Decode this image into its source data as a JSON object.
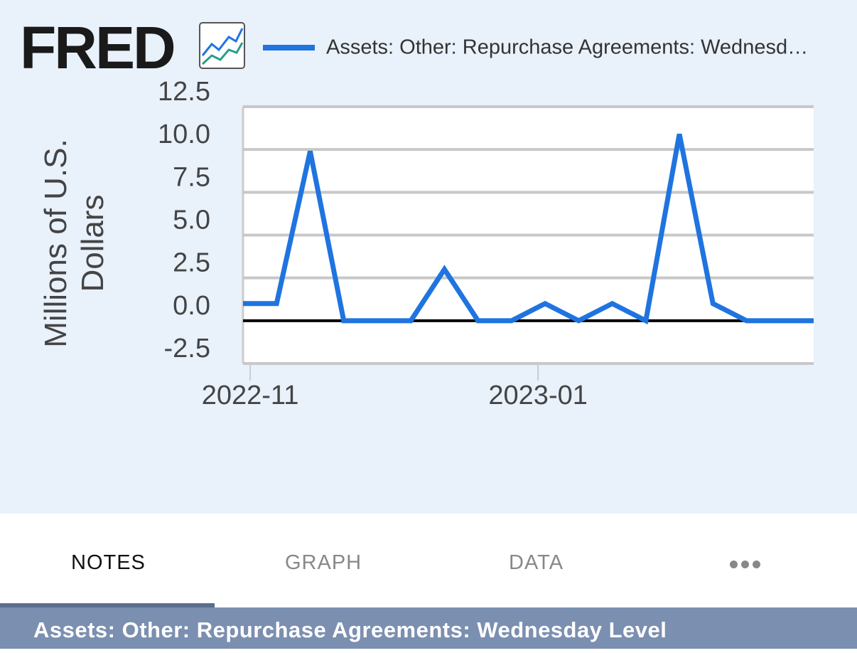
{
  "header": {
    "logo": "FRED"
  },
  "chart_data": {
    "type": "line",
    "legend_label": "Assets: Other: Repurchase Agreements: Wednesd…",
    "ylabel": "Millions of U.S. Dollars",
    "categories": [
      null,
      null,
      null,
      null,
      null,
      null,
      null,
      null,
      null,
      null,
      null,
      null,
      null,
      null,
      null,
      null,
      null,
      null
    ],
    "series": [
      {
        "name": "Assets: Other: Repurchase Agreements: Wednesd…",
        "color": "#1f74e0",
        "values": [
          1.0,
          1.0,
          9.9,
          0,
          0,
          0,
          3.0,
          0,
          0,
          1.0,
          0,
          1.0,
          0,
          10.9,
          1.0,
          0,
          0,
          0
        ]
      }
    ],
    "xticks": [
      "2022-11",
      "2023-01"
    ],
    "ylim": [
      -2.5,
      12.5
    ],
    "yticks": [
      -2.5,
      {
        "value": 0,
        "label": "0.0"
      },
      2.5,
      {
        "value": 5,
        "label": "5.0"
      },
      7.5,
      {
        "value": 10,
        "label": "10.0"
      },
      12.5
    ],
    "grid": true
  },
  "tabs": [
    "NOTES",
    "GRAPH",
    "DATA"
  ],
  "footer": {
    "title": "Assets: Other: Repurchase Agreements: Wednesday Level"
  }
}
